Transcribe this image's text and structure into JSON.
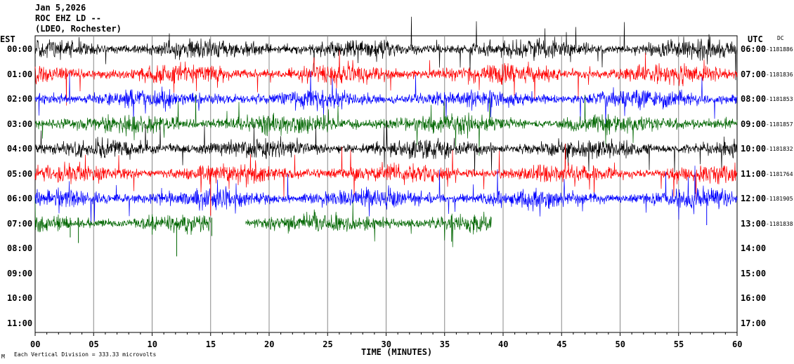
{
  "header": {
    "date": "Jan 5,2026",
    "station": "ROC EHZ LD --",
    "network": "(LDEO, Rochester)"
  },
  "axes": {
    "left_label": "EST",
    "right_label": "UTC",
    "dc_label": "DC",
    "x_label": "TIME (MINUTES)",
    "footer_mark": "M",
    "footer_note": "Each Vertical Division =  333.33 microvolts"
  },
  "chart_data": {
    "type": "line",
    "title": "",
    "xlabel": "TIME (MINUTES)",
    "xlim": [
      0,
      60
    ],
    "x_ticks": [
      "00",
      "05",
      "10",
      "15",
      "20",
      "25",
      "30",
      "35",
      "40",
      "45",
      "50",
      "55",
      "60"
    ],
    "rows_est": [
      "00:00",
      "01:00",
      "02:00",
      "03:00",
      "04:00",
      "05:00",
      "06:00",
      "07:00",
      "08:00",
      "09:00",
      "10:00",
      "11:00"
    ],
    "rows_utc": [
      "06:00",
      "07:00",
      "08:00",
      "09:00",
      "10:00",
      "11:00",
      "12:00",
      "13:00",
      "14:00",
      "15:00",
      "16:00",
      "17:00"
    ],
    "dc_offsets": [
      "1181886",
      "1181836",
      "1181853",
      "1181857",
      "1181832",
      "1181764",
      "1181905",
      "1181838",
      "",
      "",
      "",
      ""
    ],
    "trace_colors": [
      "#000000",
      "#ff0000",
      "#0000ff",
      "#006600"
    ],
    "traces": [
      {
        "row": 0,
        "color": "#000000",
        "start_min": 0,
        "end_min": 60
      },
      {
        "row": 1,
        "color": "#ff0000",
        "start_min": 0,
        "end_min": 60
      },
      {
        "row": 2,
        "color": "#0000ff",
        "start_min": 0,
        "end_min": 60
      },
      {
        "row": 3,
        "color": "#006600",
        "start_min": 0,
        "end_min": 60
      },
      {
        "row": 4,
        "color": "#000000",
        "start_min": 0,
        "end_min": 60
      },
      {
        "row": 5,
        "color": "#ff0000",
        "start_min": 0,
        "end_min": 60
      },
      {
        "row": 6,
        "color": "#0000ff",
        "start_min": 0,
        "end_min": 60
      },
      {
        "row": 7,
        "color": "#006600",
        "start_min": 0,
        "end_min": 15,
        "gap_to_min": 18
      },
      {
        "row": 7,
        "color": "#006600",
        "start_min": 18,
        "end_min": 39
      }
    ]
  }
}
